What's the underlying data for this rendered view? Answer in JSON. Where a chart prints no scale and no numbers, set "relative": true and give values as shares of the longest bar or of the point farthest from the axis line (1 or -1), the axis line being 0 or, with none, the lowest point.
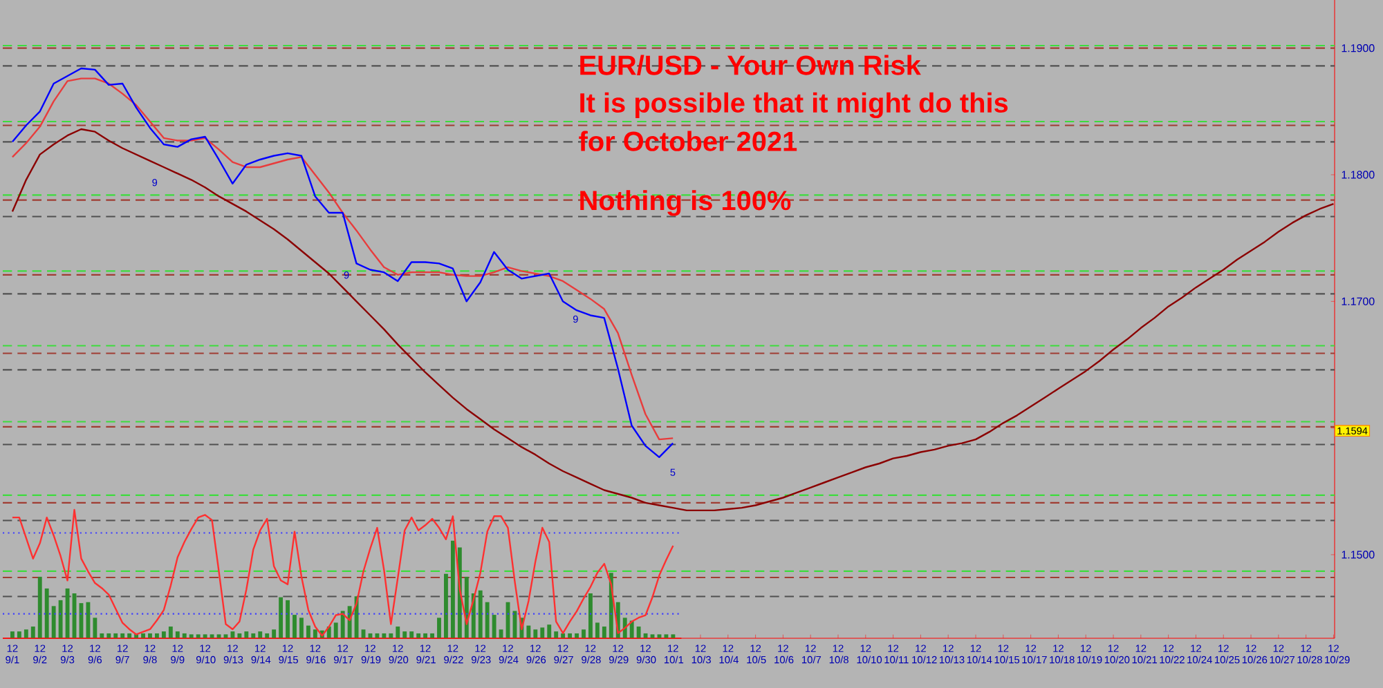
{
  "chart_data": [
    {
      "type": "line",
      "annotations": [
        "EUR/USD - Your Own Risk",
        "It is possible that it might do this",
        "for October 2021",
        "Nothing is 100%",
        "9",
        "9",
        "9",
        "5",
        "1.1594"
      ],
      "categories": [
        "12 9/1",
        null,
        "12 9/2",
        null,
        "12 9/3",
        null,
        "12 9/6",
        null,
        "12 9/7",
        null,
        "12 9/8",
        null,
        "12 9/9",
        null,
        "12 9/10",
        null,
        "12 9/13",
        null,
        "12 9/14",
        null,
        "12 9/15",
        null,
        "12 9/16",
        null,
        "12 9/17",
        null,
        "12 9/19",
        null,
        "12 9/20",
        null,
        "12 9/21",
        null,
        "12 9/22",
        null,
        "12 9/23",
        null,
        "12 9/24",
        null,
        "12 9/26",
        null,
        "12 9/27",
        null,
        "12 9/28",
        null,
        "12 9/29",
        null,
        "12 9/30",
        null,
        "12 10/1",
        null,
        "12 10/3",
        null,
        "12 10/4",
        null,
        "12 10/5",
        null,
        "12 10/6",
        null,
        "12 10/7",
        null,
        "12 10/8",
        null,
        "12 10/10",
        null,
        "12 10/11",
        null,
        "12 10/12",
        null,
        "12 10/13",
        null,
        "12 10/14",
        null,
        "12 10/15",
        null,
        "12 10/17",
        null,
        "12 10/18",
        null,
        "12 10/19",
        null,
        "12 10/20",
        null,
        "12 10/21",
        null,
        "12 10/22",
        null,
        "12 10/24",
        null,
        "12 10/25",
        null,
        "12 10/26",
        null,
        "12 10/27",
        null,
        "12 10/28",
        null,
        "12 10/29"
      ],
      "ylim": [
        1.1434,
        1.1938
      ],
      "yticks": [
        {
          "value": 1.19,
          "label": "1.1900"
        },
        {
          "value": 1.18,
          "label": "1.1800"
        },
        {
          "value": 1.17,
          "label": "1.1700"
        },
        {
          "value": 1.16,
          "label": null
        },
        {
          "value": 1.15,
          "label": "1.1500"
        }
      ],
      "ref_lines": [
        {
          "axis": "y",
          "value": 1.1902,
          "color": "#3cdc3c",
          "line_style": "dashed"
        },
        {
          "axis": "y",
          "value": 1.19,
          "color": "#a03c32",
          "line_style": "dashed"
        },
        {
          "axis": "y",
          "value": 1.1886,
          "color": "#505050",
          "line_style": "dashed"
        },
        {
          "axis": "y",
          "value": 1.1842,
          "color": "#3cdc3c",
          "line_style": "dashed"
        },
        {
          "axis": "y",
          "value": 1.1839,
          "color": "#a03c32",
          "line_style": "dashed"
        },
        {
          "axis": "y",
          "value": 1.1826,
          "color": "#505050",
          "line_style": "dashed"
        },
        {
          "axis": "y",
          "value": 1.1784,
          "color": "#3cdc3c",
          "line_style": "dashed"
        },
        {
          "axis": "y",
          "value": 1.178,
          "color": "#a03c32",
          "line_style": "dashed"
        },
        {
          "axis": "y",
          "value": 1.1767,
          "color": "#505050",
          "line_style": "dashed"
        },
        {
          "axis": "y",
          "value": 1.1724,
          "color": "#3cdc3c",
          "line_style": "dashed"
        },
        {
          "axis": "y",
          "value": 1.1721,
          "color": "#a03c32",
          "line_style": "dashed"
        },
        {
          "axis": "y",
          "value": 1.1706,
          "color": "#505050",
          "line_style": "dashed"
        },
        {
          "axis": "y",
          "value": 1.1665,
          "color": "#3cdc3c",
          "line_style": "dashed"
        },
        {
          "axis": "y",
          "value": 1.1659,
          "color": "#a03c32",
          "line_style": "dashed"
        },
        {
          "axis": "y",
          "value": 1.1646,
          "color": "#505050",
          "line_style": "dashed"
        },
        {
          "axis": "y",
          "value": 1.1605,
          "color": "#3cdc3c",
          "line_style": "dashed"
        },
        {
          "axis": "y",
          "value": 1.1601,
          "color": "#a03c32",
          "line_style": "dashed"
        },
        {
          "axis": "y",
          "value": 1.1587,
          "color": "#505050",
          "line_style": "dashed"
        },
        {
          "axis": "y",
          "value": 1.1547,
          "color": "#3cdc3c",
          "line_style": "dashed"
        },
        {
          "axis": "y",
          "value": 1.1541,
          "color": "#a03c32",
          "line_style": "dashed"
        },
        {
          "axis": "y",
          "value": 1.1527,
          "color": "#505050",
          "line_style": "dashed"
        },
        {
          "axis": "y",
          "value": 1.1487,
          "color": "#3cdc3c",
          "line_style": "dashed"
        },
        {
          "axis": "y",
          "value": 1.1482,
          "color": "#a03c32",
          "line_style": "dashed"
        },
        {
          "axis": "y",
          "value": 1.1467,
          "color": "#505050",
          "line_style": "dashed"
        }
      ],
      "series": [
        {
          "color": "#8b0000",
          "values": [
            1.1771,
            1.1796,
            1.1816,
            1.1824,
            1.1831,
            1.1836,
            1.1834,
            1.1827,
            1.1821,
            1.1816,
            1.1811,
            1.1806,
            1.1801,
            1.1796,
            1.179,
            1.1783,
            1.1777,
            1.1771,
            1.1764,
            1.1757,
            1.1749,
            1.174,
            1.1731,
            1.1722,
            1.1711,
            1.17,
            1.1689,
            1.1678,
            1.1666,
            1.1655,
            1.1644,
            1.1634,
            1.1624,
            1.1615,
            1.1607,
            1.1599,
            1.1592,
            1.1585,
            1.1579,
            1.1572,
            1.1566,
            1.1561,
            1.1556,
            1.1551,
            1.1548,
            1.1545,
            1.1541,
            1.1539,
            1.1537,
            1.1535,
            1.1535,
            1.1535,
            1.1536,
            1.1537,
            1.1539,
            1.1542,
            1.1545,
            1.1549,
            1.1553,
            1.1557,
            1.1561,
            1.1565,
            1.1569,
            1.1572,
            1.1576,
            1.1578,
            1.1581,
            1.1583,
            1.1586,
            1.1588,
            1.1591,
            1.1597,
            1.1604,
            1.161,
            1.1617,
            1.1624,
            1.1631,
            1.1638,
            1.1645,
            1.1653,
            1.1662,
            1.167,
            1.1679,
            1.1687,
            1.1696,
            1.1703,
            1.1711,
            1.1718,
            1.1725,
            1.1733,
            1.174,
            1.1747,
            1.1755,
            1.1762,
            1.1768,
            1.1773,
            1.1777
          ]
        },
        {
          "color": "#e83c3c",
          "values": [
            1.1814,
            1.1825,
            1.1838,
            1.1858,
            1.1874,
            1.1876,
            1.1876,
            1.1872,
            1.1864,
            1.1855,
            1.1842,
            1.1829,
            1.1827,
            1.1827,
            1.1829,
            1.182,
            1.181,
            1.1806,
            1.1806,
            1.1809,
            1.1812,
            1.1814,
            1.18,
            1.1786,
            1.177,
            1.1756,
            1.1741,
            1.1727,
            1.1721,
            1.1723,
            1.1723,
            1.1723,
            1.1721,
            1.172,
            1.172,
            1.1723,
            1.1727,
            1.1724,
            1.1722,
            1.172,
            1.1716,
            1.1709,
            1.1702,
            1.1694,
            1.1675,
            1.1642,
            1.1611,
            1.1591,
            1.1592,
            null,
            null,
            null,
            null,
            null,
            null,
            null,
            null,
            null,
            null,
            null,
            null,
            null,
            null,
            null,
            null,
            null,
            null,
            null,
            null,
            null,
            null,
            null,
            null,
            null,
            null,
            null,
            null,
            null,
            null,
            null,
            null,
            null,
            null,
            null,
            null,
            null,
            null,
            null,
            null,
            null,
            null,
            null,
            null,
            null,
            null,
            null,
            null
          ]
        },
        {
          "color": "#0000ff",
          "values": [
            1.1826,
            1.1839,
            1.185,
            1.1872,
            1.1878,
            1.1884,
            1.1883,
            1.1871,
            1.1872,
            1.1853,
            1.1837,
            1.1824,
            1.1822,
            1.1828,
            1.183,
            1.1812,
            1.1793,
            1.1808,
            1.1812,
            1.1815,
            1.1817,
            1.1815,
            1.1783,
            1.177,
            1.177,
            1.173,
            1.1725,
            1.1723,
            1.1716,
            1.1731,
            1.1731,
            1.173,
            1.1726,
            1.17,
            1.1715,
            1.1739,
            1.1725,
            1.1718,
            1.172,
            1.1722,
            1.17,
            1.1693,
            1.1689,
            1.1687,
            1.1647,
            1.1602,
            1.1586,
            1.1577,
            1.1588,
            null,
            null,
            null,
            null,
            null,
            null,
            null,
            null,
            null,
            null,
            null,
            null,
            null,
            null,
            null,
            null,
            null,
            null,
            null,
            null,
            null,
            null,
            null,
            null,
            null,
            null,
            null,
            null,
            null,
            null,
            null,
            null,
            null,
            null,
            null,
            null,
            null,
            null,
            null,
            null,
            null,
            null,
            null,
            null,
            null,
            null,
            null,
            null
          ]
        }
      ]
    },
    {
      "type": "bar",
      "relative": true,
      "categories": [
        null,
        null,
        null,
        null,
        null,
        null,
        null,
        null,
        null,
        null,
        null,
        null,
        null,
        null,
        null,
        null,
        null,
        null,
        null,
        null,
        null,
        null,
        null,
        null,
        null,
        null,
        null,
        null,
        null,
        null,
        null,
        null,
        null,
        null,
        null,
        null,
        null,
        null,
        null,
        null,
        null,
        null,
        null,
        null,
        null,
        null,
        null,
        null,
        null,
        null,
        null,
        null,
        null,
        null,
        null,
        null,
        null,
        null,
        null,
        null,
        null,
        null,
        null,
        null,
        null,
        null,
        null,
        null,
        null,
        null,
        null,
        null,
        null,
        null,
        null,
        null,
        null,
        null,
        null,
        null,
        null,
        null,
        null,
        null,
        null,
        null,
        null,
        null,
        null,
        null,
        null,
        null,
        null,
        null,
        null,
        null,
        null
      ],
      "series": [
        {
          "color": "#2e8b2e",
          "values": [
            0.07,
            0.07,
            0.09,
            0.12,
            0.63,
            0.51,
            0.33,
            0.39,
            0.51,
            0.46,
            0.36,
            0.37,
            0.21,
            0.05,
            0.05,
            0.05,
            0.05,
            0.05,
            0.05,
            0.05,
            0.05,
            0.05,
            0.07,
            0.12,
            0.07,
            0.05,
            0.04,
            0.04,
            0.04,
            0.04,
            0.04,
            0.04,
            0.07,
            0.05,
            0.07,
            0.05,
            0.07,
            0.05,
            0.09,
            0.42,
            0.39,
            0.24,
            0.21,
            0.13,
            0.09,
            0.08,
            0.12,
            0.16,
            0.28,
            0.33,
            0.43,
            0.09,
            0.05,
            0.05,
            0.05,
            0.05,
            0.12,
            0.07,
            0.07,
            0.05,
            0.05,
            0.05,
            0.21,
            0.66,
            1,
            0.93,
            0.63,
            0.46,
            0.49,
            0.37,
            0.24,
            0.09,
            0.37,
            0.28,
            0.21,
            0.13,
            0.09,
            0.11,
            0.14,
            0.07,
            0.05,
            0.05,
            0.05,
            0.09,
            0.46,
            0.16,
            0.12,
            0.67,
            0.37,
            0.21,
            0.18,
            0.12,
            0.05,
            0.04,
            0.04,
            0.04,
            0.04
          ]
        }
      ]
    },
    {
      "type": "line",
      "relative": true,
      "categories": [
        null,
        null,
        null,
        null,
        null,
        null,
        null,
        null,
        null,
        null,
        null,
        null,
        null,
        null,
        null,
        null,
        null,
        null,
        null,
        null,
        null,
        null,
        null,
        null,
        null,
        null,
        null,
        null,
        null,
        null,
        null,
        null,
        null,
        null,
        null,
        null,
        null,
        null,
        null,
        null,
        null,
        null,
        null,
        null,
        null,
        null,
        null,
        null,
        null,
        null,
        null,
        null,
        null,
        null,
        null,
        null,
        null,
        null,
        null,
        null,
        null,
        null,
        null,
        null,
        null,
        null,
        null,
        null,
        null,
        null,
        null,
        null,
        null,
        null,
        null,
        null,
        null,
        null,
        null,
        null,
        null,
        null,
        null,
        null,
        null,
        null,
        null,
        null,
        null,
        null,
        null,
        null,
        null,
        null,
        null,
        null,
        null
      ],
      "ref_lines": [
        {
          "axis": "y",
          "value": 0.82,
          "color": "#3c3cff",
          "line_style": "dotted"
        },
        {
          "axis": "y",
          "value": 0.19,
          "color": "#3c3cff",
          "line_style": "dotted"
        }
      ],
      "series": [
        {
          "color": "#ff3030",
          "values": [
            0.94,
            0.94,
            0.78,
            0.62,
            0.74,
            0.94,
            0.8,
            0.64,
            0.45,
            1,
            0.62,
            0.52,
            0.43,
            0.39,
            0.34,
            0.23,
            0.12,
            0.07,
            0.03,
            0.05,
            0.07,
            0.14,
            0.22,
            0.41,
            0.63,
            0.75,
            0.85,
            0.94,
            0.96,
            0.92,
            0.52,
            0.11,
            0.07,
            0.13,
            0.38,
            0.69,
            0.84,
            0.93,
            0.56,
            0.45,
            0.42,
            0.83,
            0.48,
            0.22,
            0.09,
            0.02,
            0.09,
            0.18,
            0.19,
            0.14,
            0.27,
            0.52,
            0.7,
            0.86,
            0.53,
            0.11,
            0.47,
            0.84,
            0.94,
            0.84,
            0.88,
            0.93,
            0.86,
            0.77,
            0.95,
            0.38,
            0.11,
            0.3,
            0.51,
            0.83,
            0.95,
            0.95,
            0.86,
            0.44,
            0.07,
            0.29,
            0.6,
            0.86,
            0.75,
            0.13,
            0.04,
            0.13,
            0.21,
            0.31,
            0.4,
            0.51,
            0.58,
            0.42,
            0.04,
            0.08,
            0.13,
            0.16,
            0.18,
            0.32,
            0.49,
            0.61,
            0.72
          ]
        }
      ]
    }
  ]
}
